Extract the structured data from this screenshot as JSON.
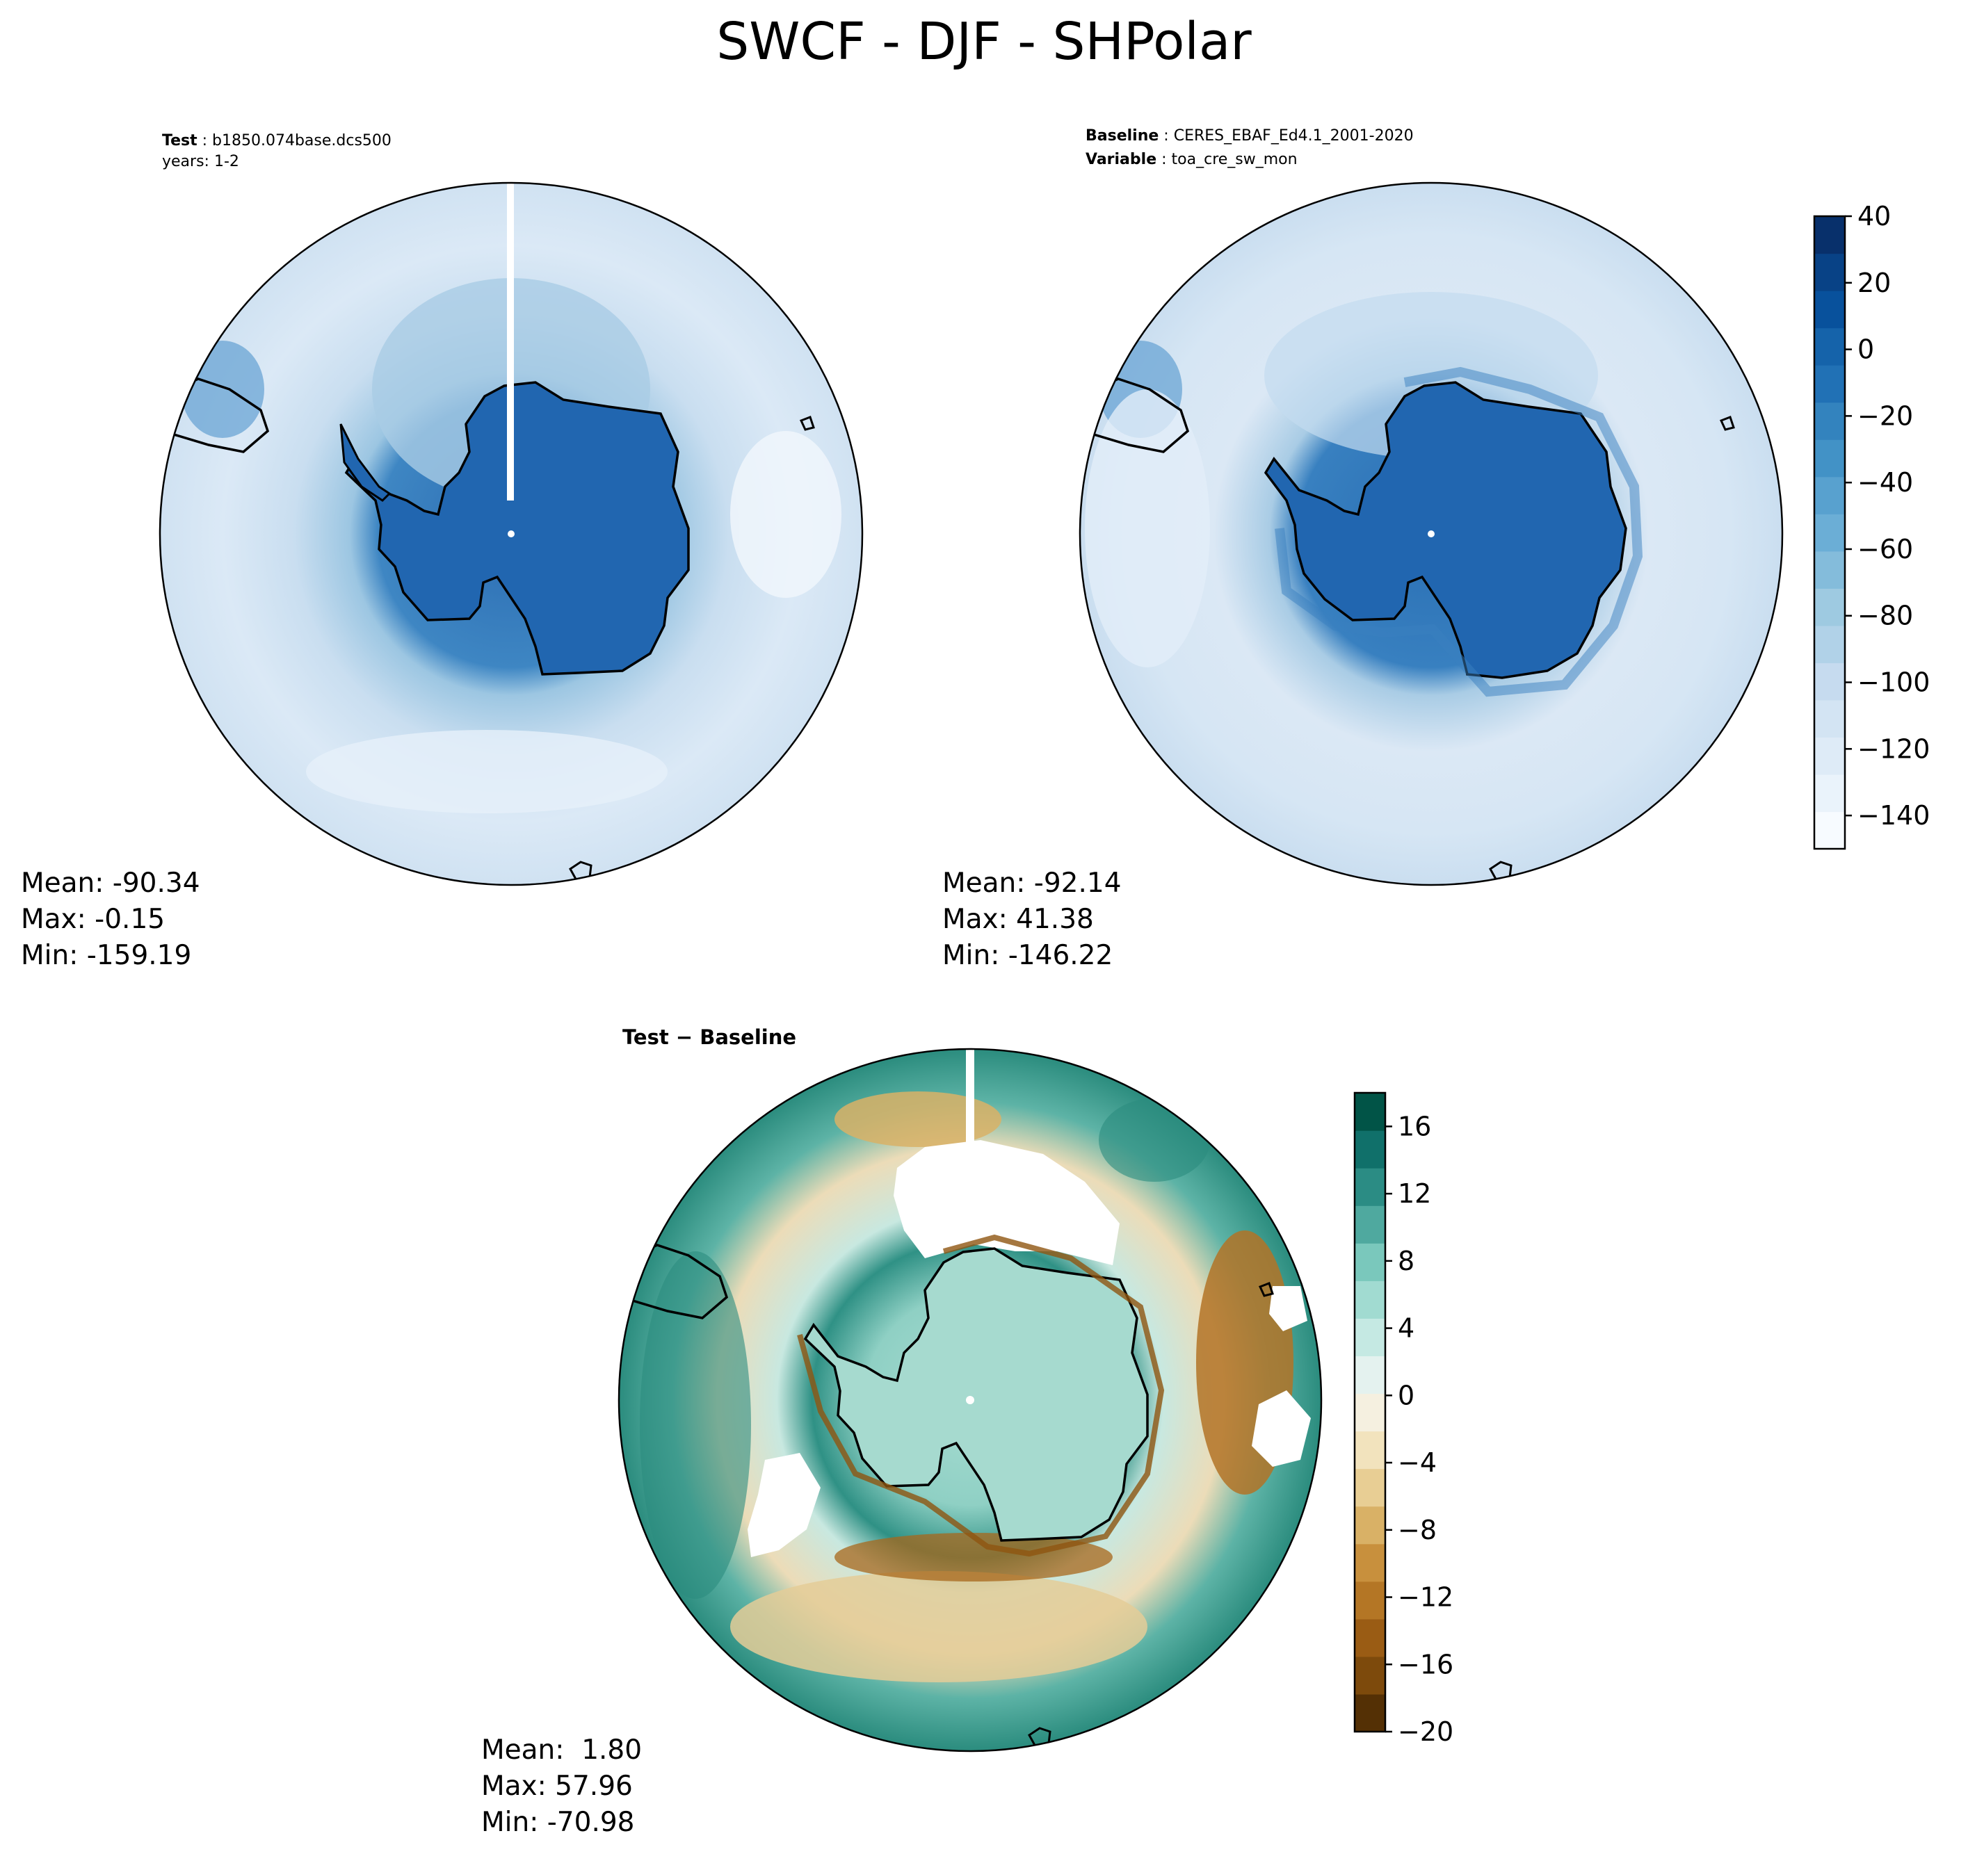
{
  "figure": {
    "title": "SWCF - DJF - SHPolar"
  },
  "panels": {
    "test": {
      "label_key": "Test",
      "label_value": "b1850.074base.dcs500",
      "years": "years: 1-2",
      "stats": {
        "mean": "Mean: -90.34",
        "max": "Max: -0.15",
        "min": "Min: -159.19"
      }
    },
    "baseline": {
      "label_key": "Baseline",
      "label_value": "CERES_EBAF_Ed4.1_2001-2020",
      "var_key": "Variable",
      "var_value": "toa_cre_sw_mon",
      "stats": {
        "mean": "Mean: -92.14",
        "max": "Max: 41.38",
        "min": "Min: -146.22"
      }
    },
    "diff": {
      "title": "Test − Baseline",
      "stats": {
        "mean": "Mean:  1.80",
        "max": "Max: 57.96",
        "min": "Min: -70.98"
      }
    }
  },
  "chart_data": [
    {
      "type": "heatmap",
      "name": "test",
      "projection": "south-polar-stereographic",
      "colormap": "Blues",
      "mean": -90.34,
      "max": -0.15,
      "min": -159.19
    },
    {
      "type": "heatmap",
      "name": "baseline",
      "projection": "south-polar-stereographic",
      "colormap": "Blues",
      "mean": -92.14,
      "max": 41.38,
      "min": -146.22,
      "colorbar": {
        "range": [
          -150,
          40
        ],
        "ticks": [
          40,
          20,
          0,
          -20,
          -40,
          -60,
          -80,
          -100,
          -120,
          -140
        ],
        "tick_labels": [
          "40",
          "20",
          "0",
          "−20",
          "−40",
          "−60",
          "−80",
          "−100",
          "−120",
          "−140"
        ],
        "colors": [
          "#f7fbff",
          "#eaf3fb",
          "#deebf7",
          "#d3e4f3",
          "#c6dbef",
          "#b1d2e8",
          "#9ecae1",
          "#84bcdb",
          "#6baed6",
          "#58a1cf",
          "#4292c6",
          "#3383be",
          "#2171b5",
          "#1563aa",
          "#08519c",
          "#084286",
          "#08306b"
        ]
      }
    },
    {
      "type": "heatmap",
      "name": "diff",
      "projection": "south-polar-stereographic",
      "colormap": "BrBG",
      "mean": 1.8,
      "max": 57.96,
      "min": -70.98,
      "colorbar": {
        "range": [
          -20,
          18
        ],
        "ticks": [
          16,
          12,
          8,
          4,
          0,
          -4,
          -8,
          -12,
          -16,
          -20
        ],
        "tick_labels": [
          "16",
          "12",
          "8",
          "4",
          "0",
          "−4",
          "−8",
          "−12",
          "−16",
          "−20"
        ],
        "colors": [
          "#543005",
          "#7d4a0c",
          "#9a5c14",
          "#b47625",
          "#c8903d",
          "#d9b166",
          "#e8ce94",
          "#f2e3bd",
          "#f5f0e0",
          "#e4f2ef",
          "#c5e9e3",
          "#a1dbd1",
          "#7ac8bc",
          "#4fa99f",
          "#2b8c84",
          "#10706a",
          "#015447"
        ]
      }
    }
  ]
}
